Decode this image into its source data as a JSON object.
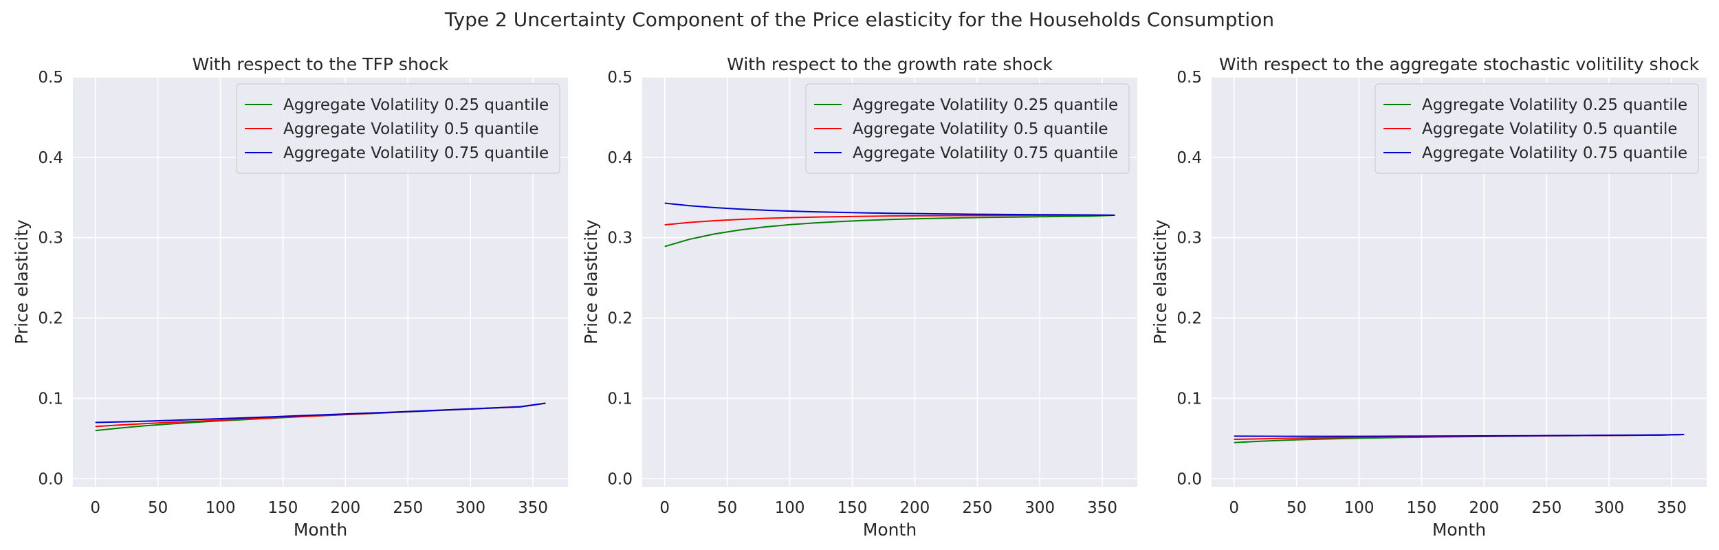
{
  "figure": {
    "suptitle": "Type 2 Uncertainty Component of the Price elasticity for the Households Consumption",
    "background": "#ffffff",
    "axes_facecolor": "#eaeaf2",
    "grid_color": "#ffffff"
  },
  "chart_data": [
    {
      "type": "line",
      "title": "With respect to the TFP shock",
      "xlabel": "Month",
      "ylabel": "Price elasticity",
      "xlim": [
        -18,
        378
      ],
      "ylim": [
        -0.01,
        0.5
      ],
      "xticks": [
        0,
        50,
        100,
        150,
        200,
        250,
        300,
        350
      ],
      "yticks": [
        0.0,
        0.1,
        0.2,
        0.3,
        0.4,
        0.5
      ],
      "xtick_labels": [
        "0",
        "50",
        "100",
        "150",
        "200",
        "250",
        "300",
        "350"
      ],
      "ytick_labels": [
        "0.0",
        "0.1",
        "0.2",
        "0.3",
        "0.4",
        "0.5"
      ],
      "grid": true,
      "legend_position": "top-right",
      "x": [
        0,
        20,
        40,
        60,
        80,
        100,
        120,
        140,
        160,
        180,
        200,
        220,
        240,
        260,
        280,
        300,
        320,
        340,
        360
      ],
      "series": [
        {
          "name": "Aggregate Volatility 0.25 quantile",
          "color": "#008000",
          "values": [
            0.06,
            0.0632,
            0.0659,
            0.0682,
            0.0702,
            0.072,
            0.0737,
            0.0753,
            0.0768,
            0.0783,
            0.0797,
            0.0811,
            0.0825,
            0.0839,
            0.0853,
            0.0867,
            0.0881,
            0.0895,
            0.094
          ]
        },
        {
          "name": "Aggregate Volatility 0.5 quantile",
          "color": "#ff0000",
          "values": [
            0.065,
            0.0669,
            0.0686,
            0.0701,
            0.0715,
            0.0729,
            0.0743,
            0.0757,
            0.0771,
            0.0785,
            0.0799,
            0.0813,
            0.0827,
            0.0841,
            0.0855,
            0.0869,
            0.0883,
            0.0897,
            0.094
          ]
        },
        {
          "name": "Aggregate Volatility 0.75 quantile",
          "color": "#0000cc",
          "values": [
            0.07,
            0.0708,
            0.0716,
            0.0726,
            0.0736,
            0.0747,
            0.0758,
            0.077,
            0.0782,
            0.0794,
            0.0806,
            0.0818,
            0.083,
            0.0843,
            0.0856,
            0.0869,
            0.0882,
            0.0895,
            0.094
          ]
        }
      ]
    },
    {
      "type": "line",
      "title": "With respect to the growth rate shock",
      "xlabel": "Month",
      "ylabel": "Price elasticity",
      "xlim": [
        -18,
        378
      ],
      "ylim": [
        -0.01,
        0.5
      ],
      "xticks": [
        0,
        50,
        100,
        150,
        200,
        250,
        300,
        350
      ],
      "yticks": [
        0.0,
        0.1,
        0.2,
        0.3,
        0.4,
        0.5
      ],
      "xtick_labels": [
        "0",
        "50",
        "100",
        "150",
        "200",
        "250",
        "300",
        "350"
      ],
      "ytick_labels": [
        "0.0",
        "0.1",
        "0.2",
        "0.3",
        "0.4",
        "0.5"
      ],
      "grid": true,
      "legend_position": "top-right",
      "x": [
        0,
        20,
        40,
        60,
        80,
        100,
        120,
        140,
        160,
        180,
        200,
        220,
        240,
        260,
        280,
        300,
        320,
        340,
        360
      ],
      "series": [
        {
          "name": "Aggregate Volatility 0.25 quantile",
          "color": "#008000",
          "values": [
            0.289,
            0.2981,
            0.3047,
            0.3096,
            0.3133,
            0.3162,
            0.3184,
            0.3201,
            0.3215,
            0.3226,
            0.3235,
            0.3242,
            0.3248,
            0.3253,
            0.3257,
            0.3261,
            0.3264,
            0.3267,
            0.328
          ]
        },
        {
          "name": "Aggregate Volatility 0.5 quantile",
          "color": "#ff0000",
          "values": [
            0.316,
            0.319,
            0.3212,
            0.3228,
            0.324,
            0.3249,
            0.3256,
            0.3262,
            0.3266,
            0.327,
            0.3272,
            0.3274,
            0.3276,
            0.3277,
            0.3278,
            0.3279,
            0.3279,
            0.328,
            0.328
          ]
        },
        {
          "name": "Aggregate Volatility 0.75 quantile",
          "color": "#0000cc",
          "values": [
            0.343,
            0.3398,
            0.3374,
            0.3356,
            0.3342,
            0.3331,
            0.3322,
            0.3315,
            0.3309,
            0.3304,
            0.33,
            0.3296,
            0.3293,
            0.3291,
            0.3289,
            0.3287,
            0.3285,
            0.3283,
            0.328
          ]
        }
      ]
    },
    {
      "type": "line",
      "title": "With respect to the aggregate stochastic volitility shock",
      "xlabel": "Month",
      "ylabel": "Price elasticity",
      "xlim": [
        -18,
        378
      ],
      "ylim": [
        -0.01,
        0.5
      ],
      "xticks": [
        0,
        50,
        100,
        150,
        200,
        250,
        300,
        350
      ],
      "yticks": [
        0.0,
        0.1,
        0.2,
        0.3,
        0.4,
        0.5
      ],
      "xtick_labels": [
        "0",
        "50",
        "100",
        "150",
        "200",
        "250",
        "300",
        "350"
      ],
      "ytick_labels": [
        "0.0",
        "0.1",
        "0.2",
        "0.3",
        "0.4",
        "0.5"
      ],
      "grid": true,
      "legend_position": "top-right",
      "x": [
        0,
        20,
        40,
        60,
        80,
        100,
        120,
        140,
        160,
        180,
        200,
        220,
        240,
        260,
        280,
        300,
        320,
        340,
        360
      ],
      "series": [
        {
          "name": "Aggregate Volatility 0.25 quantile",
          "color": "#008000",
          "values": [
            0.045,
            0.0466,
            0.0479,
            0.0489,
            0.0497,
            0.0504,
            0.051,
            0.0515,
            0.0519,
            0.0523,
            0.0526,
            0.0529,
            0.0532,
            0.0535,
            0.0537,
            0.0539,
            0.0541,
            0.0543,
            0.055
          ]
        },
        {
          "name": "Aggregate Volatility 0.5 quantile",
          "color": "#ff0000",
          "values": [
            0.049,
            0.0496,
            0.0502,
            0.0507,
            0.0511,
            0.0515,
            0.0518,
            0.0521,
            0.0524,
            0.0527,
            0.0529,
            0.0531,
            0.0533,
            0.0535,
            0.0537,
            0.0539,
            0.0541,
            0.0543,
            0.055
          ]
        },
        {
          "name": "Aggregate Volatility 0.75 quantile",
          "color": "#0000cc",
          "values": [
            0.053,
            0.0529,
            0.0528,
            0.0528,
            0.0528,
            0.0528,
            0.0529,
            0.053,
            0.0531,
            0.0532,
            0.0533,
            0.0534,
            0.0535,
            0.0537,
            0.0539,
            0.0541,
            0.0543,
            0.0545,
            0.055
          ]
        }
      ]
    }
  ]
}
